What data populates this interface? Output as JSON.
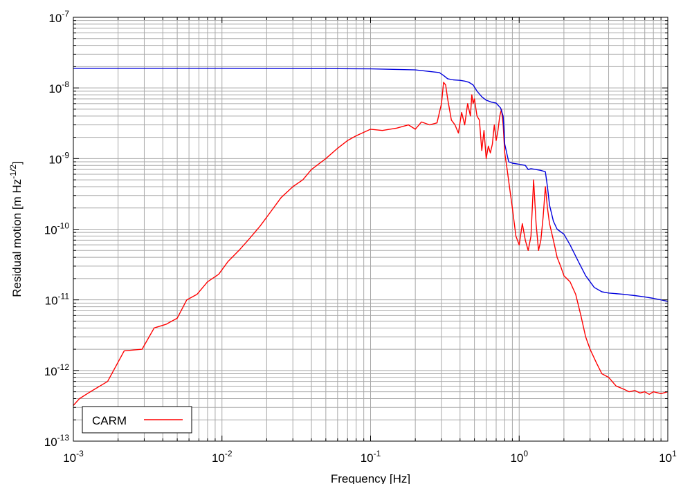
{
  "chart_data": {
    "type": "line",
    "title": "",
    "xlabel": "Frequency [Hz]",
    "ylabel_main": "Residual motion [m Hz",
    "ylabel_exp": "-1/2",
    "ylabel_close": "]",
    "xscale": "log",
    "yscale": "log",
    "xlim": [
      0.001,
      10
    ],
    "ylim": [
      1e-13,
      1e-07
    ],
    "grid": true,
    "legend_position": "bottom-left",
    "x_ticks": [
      {
        "base": "10",
        "exp": "-3",
        "value": 0.001
      },
      {
        "base": "10",
        "exp": "-2",
        "value": 0.01
      },
      {
        "base": "10",
        "exp": "-1",
        "value": 0.1
      },
      {
        "base": "10",
        "exp": "0",
        "value": 1
      },
      {
        "base": "10",
        "exp": "1",
        "value": 10
      }
    ],
    "y_ticks": [
      {
        "base": "10",
        "exp": "-13",
        "value": 1e-13
      },
      {
        "base": "10",
        "exp": "-12",
        "value": 1e-12
      },
      {
        "base": "10",
        "exp": "-11",
        "value": 1e-11
      },
      {
        "base": "10",
        "exp": "-10",
        "value": 1e-10
      },
      {
        "base": "10",
        "exp": "-9",
        "value": 1e-09
      },
      {
        "base": "10",
        "exp": "-8",
        "value": 1e-08
      },
      {
        "base": "10",
        "exp": "-7",
        "value": 1e-07
      }
    ],
    "series": [
      {
        "name": "CARM",
        "color": "#ff0000",
        "in_legend": true,
        "x": [
          0.001,
          0.0011,
          0.0013,
          0.0017,
          0.0022,
          0.0029,
          0.0035,
          0.0042,
          0.005,
          0.0058,
          0.0068,
          0.008,
          0.0095,
          0.011,
          0.013,
          0.015,
          0.018,
          0.021,
          0.025,
          0.03,
          0.035,
          0.04,
          0.05,
          0.06,
          0.07,
          0.08,
          0.1,
          0.12,
          0.15,
          0.18,
          0.2,
          0.22,
          0.25,
          0.28,
          0.3,
          0.31,
          0.32,
          0.33,
          0.35,
          0.37,
          0.39,
          0.41,
          0.43,
          0.45,
          0.47,
          0.48,
          0.49,
          0.5,
          0.52,
          0.54,
          0.56,
          0.58,
          0.6,
          0.62,
          0.64,
          0.66,
          0.68,
          0.7,
          0.72,
          0.74,
          0.76,
          0.78,
          0.8,
          0.83,
          0.86,
          0.9,
          0.95,
          1.0,
          1.05,
          1.1,
          1.15,
          1.2,
          1.25,
          1.3,
          1.35,
          1.4,
          1.45,
          1.5,
          1.55,
          1.6,
          1.7,
          1.8,
          1.9,
          2.0,
          2.2,
          2.4,
          2.6,
          2.8,
          3.0,
          3.3,
          3.6,
          4.0,
          4.5,
          5.0,
          5.5,
          6.0,
          6.5,
          7.0,
          7.5,
          8.0,
          9.0,
          10.0
        ],
        "y": [
          3.2e-13,
          4e-13,
          5e-13,
          7e-13,
          1.9e-12,
          2e-12,
          4e-12,
          4.5e-12,
          5.5e-12,
          1e-11,
          1.2e-11,
          1.8e-11,
          2.3e-11,
          3.5e-11,
          5e-11,
          7e-11,
          1.1e-10,
          1.7e-10,
          2.8e-10,
          4e-10,
          5e-10,
          7e-10,
          1e-09,
          1.4e-09,
          1.8e-09,
          2.1e-09,
          2.6e-09,
          2.5e-09,
          2.7e-09,
          3e-09,
          2.6e-09,
          3.3e-09,
          3e-09,
          3.2e-09,
          6e-09,
          1.2e-08,
          1.1e-08,
          7e-09,
          3.5e-09,
          3e-09,
          2.3e-09,
          4.5e-09,
          3e-09,
          6e-09,
          4e-09,
          8e-09,
          6e-09,
          7e-09,
          4e-09,
          3.5e-09,
          1.3e-09,
          2.5e-09,
          1e-09,
          1.5e-09,
          1.2e-09,
          1.6e-09,
          3e-09,
          1.8e-09,
          2.5e-09,
          4e-09,
          5e-09,
          3e-09,
          1.2e-09,
          7e-10,
          4e-10,
          2e-10,
          8e-11,
          6e-11,
          1.2e-10,
          7e-11,
          5e-11,
          8e-11,
          5e-10,
          1.2e-10,
          5e-11,
          7e-11,
          1.5e-10,
          4e-10,
          2e-10,
          1.2e-10,
          7e-11,
          4e-11,
          3e-11,
          2.2e-11,
          1.8e-11,
          1.2e-11,
          6e-12,
          3e-12,
          2e-12,
          1.3e-12,
          9e-13,
          8e-13,
          6e-13,
          5.5e-13,
          5e-13,
          5.2e-13,
          4.8e-13,
          5e-13,
          4.6e-13,
          5e-13,
          4.7e-13,
          5e-13
        ]
      },
      {
        "name": "",
        "color": "#0000dd",
        "in_legend": false,
        "x": [
          0.001,
          0.01,
          0.05,
          0.1,
          0.2,
          0.29,
          0.31,
          0.33,
          0.36,
          0.4,
          0.43,
          0.46,
          0.49,
          0.52,
          0.56,
          0.6,
          0.65,
          0.7,
          0.75,
          0.78,
          0.8,
          0.85,
          0.9,
          1.0,
          1.1,
          1.15,
          1.2,
          1.3,
          1.4,
          1.5,
          1.55,
          1.6,
          1.7,
          1.8,
          2.0,
          2.2,
          2.5,
          2.8,
          3.2,
          3.6,
          4.0,
          5.0,
          6.0,
          7.0,
          8.0,
          9.0,
          10.0
        ],
        "y": [
          1.9e-08,
          1.9e-08,
          1.88e-08,
          1.86e-08,
          1.8e-08,
          1.65e-08,
          1.5e-08,
          1.35e-08,
          1.3e-08,
          1.28e-08,
          1.25e-08,
          1.2e-08,
          1.1e-08,
          9e-09,
          7.5e-09,
          6.7e-09,
          6.3e-09,
          6.1e-09,
          5.2e-09,
          4e-09,
          1.6e-09,
          9e-10,
          8.6e-10,
          8.3e-10,
          8e-10,
          7e-10,
          7.2e-10,
          7e-10,
          6.8e-10,
          6.5e-10,
          4e-10,
          2.2e-10,
          1.3e-10,
          1e-10,
          8.5e-11,
          6e-11,
          3.5e-11,
          2.2e-11,
          1.5e-11,
          1.3e-11,
          1.25e-11,
          1.2e-11,
          1.15e-11,
          1.1e-11,
          1.05e-11,
          1e-11,
          9.5e-12
        ]
      }
    ]
  }
}
